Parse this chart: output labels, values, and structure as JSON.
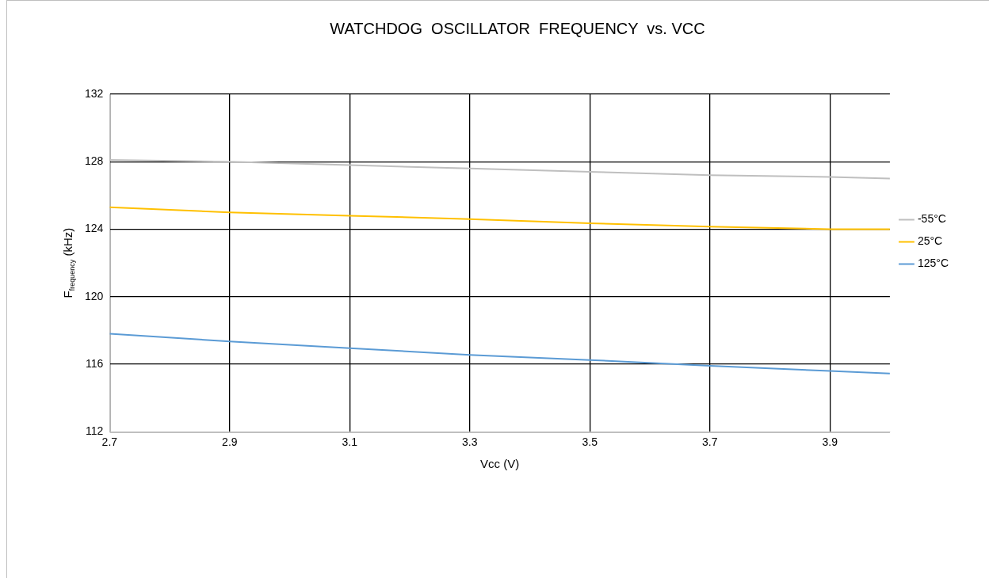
{
  "chart_data": {
    "type": "line",
    "title": "WATCHDOG  OSCILLATOR  FREQUENCY  vs. VCC",
    "xlabel": "Vcc (V)",
    "ylabel": "F$_{frequency}$ (kHz)",
    "x": [
      2.7,
      2.9,
      3.1,
      3.3,
      3.5,
      3.7,
      3.9,
      4.0
    ],
    "series": [
      {
        "name": "-55°C",
        "color": "#bfbfbf",
        "values": [
          128.1,
          128.0,
          127.8,
          127.6,
          127.4,
          127.2,
          127.1,
          127.0
        ]
      },
      {
        "name": "25°C",
        "color": "#ffc000",
        "values": [
          125.3,
          125.0,
          124.8,
          124.6,
          124.35,
          124.15,
          124.0,
          124.0
        ]
      },
      {
        "name": "125°C",
        "color": "#5b9bd5",
        "values": [
          117.8,
          117.35,
          116.95,
          116.55,
          116.25,
          115.9,
          115.6,
          115.45
        ]
      }
    ],
    "xlim": [
      2.7,
      4.0
    ],
    "xticks": [
      2.7,
      2.9,
      3.1,
      3.3,
      3.5,
      3.7,
      3.9
    ],
    "ylim": [
      112,
      132
    ],
    "yticks": [
      112,
      116,
      120,
      124,
      128,
      132
    ],
    "grid": true,
    "legend": "right",
    "marker": "none",
    "line_style": "solid"
  }
}
